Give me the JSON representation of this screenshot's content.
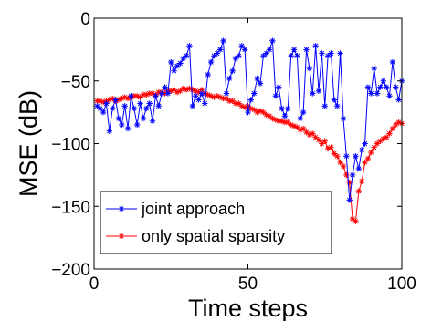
{
  "chart_data": {
    "type": "line",
    "title": "",
    "xlabel": "Time steps",
    "ylabel": "MSE (dB)",
    "xlim": [
      0,
      100
    ],
    "ylim": [
      -200,
      0
    ],
    "x_ticks": [
      0,
      50,
      100
    ],
    "x_tick_labels": [
      "0",
      "50",
      "100"
    ],
    "y_ticks": [
      0,
      -50,
      -100,
      -150,
      -200
    ],
    "y_tick_labels": [
      "0",
      "−50",
      "−100",
      "−150",
      "−200"
    ],
    "grid": false,
    "legend_position": "bottom-left",
    "series": [
      {
        "name": "joint approach",
        "color": "#0000ff",
        "marker": "asterisk",
        "x": [
          1,
          2,
          3,
          4,
          5,
          6,
          7,
          8,
          9,
          10,
          11,
          12,
          13,
          14,
          15,
          16,
          17,
          18,
          19,
          20,
          21,
          22,
          23,
          24,
          25,
          26,
          27,
          28,
          29,
          30,
          31,
          32,
          33,
          34,
          35,
          36,
          37,
          38,
          39,
          40,
          41,
          42,
          43,
          44,
          45,
          46,
          47,
          48,
          49,
          50,
          51,
          52,
          53,
          54,
          55,
          56,
          57,
          58,
          59,
          60,
          61,
          62,
          63,
          64,
          65,
          66,
          67,
          68,
          69,
          70,
          71,
          72,
          73,
          74,
          75,
          76,
          77,
          78,
          79,
          80,
          81,
          82,
          83,
          84,
          85,
          86,
          87,
          88,
          89,
          90,
          91,
          92,
          93,
          94,
          95,
          96,
          97,
          98,
          99,
          100
        ],
        "y": [
          -70,
          -72,
          -75,
          -68,
          -90,
          -72,
          -65,
          -80,
          -85,
          -70,
          -88,
          -62,
          -72,
          -85,
          -68,
          -80,
          -72,
          -68,
          -82,
          -62,
          -70,
          -60,
          -55,
          -60,
          -35,
          -42,
          -38,
          -36,
          -32,
          -30,
          -22,
          -70,
          -62,
          -65,
          -60,
          -68,
          -45,
          -35,
          -30,
          -28,
          -25,
          -18,
          -60,
          -48,
          -42,
          -32,
          -30,
          -22,
          -25,
          -75,
          -65,
          -60,
          -48,
          -52,
          -30,
          -28,
          -25,
          -18,
          -62,
          -55,
          -72,
          -78,
          -72,
          -30,
          -25,
          -30,
          -80,
          -75,
          -25,
          -40,
          -60,
          -22,
          -58,
          -28,
          -70,
          -30,
          -28,
          -65,
          -70,
          -28,
          -80,
          -110,
          -145,
          -125,
          -110,
          -120,
          -105,
          -100,
          -55,
          -60,
          -40,
          -60,
          -55,
          -50,
          -55,
          -62,
          -35,
          -55,
          -65,
          -50
        ]
      },
      {
        "name": "only spatial sparsity",
        "color": "#ff0000",
        "marker": "asterisk",
        "x": [
          1,
          2,
          3,
          4,
          5,
          6,
          7,
          8,
          9,
          10,
          11,
          12,
          13,
          14,
          15,
          16,
          17,
          18,
          19,
          20,
          21,
          22,
          23,
          24,
          25,
          26,
          27,
          28,
          29,
          30,
          31,
          32,
          33,
          34,
          35,
          36,
          37,
          38,
          39,
          40,
          41,
          42,
          43,
          44,
          45,
          46,
          47,
          48,
          49,
          50,
          51,
          52,
          53,
          54,
          55,
          56,
          57,
          58,
          59,
          60,
          61,
          62,
          63,
          64,
          65,
          66,
          67,
          68,
          69,
          70,
          71,
          72,
          73,
          74,
          75,
          76,
          77,
          78,
          79,
          80,
          81,
          82,
          83,
          84,
          85,
          86,
          87,
          88,
          89,
          90,
          91,
          92,
          93,
          94,
          95,
          96,
          97,
          98,
          99,
          100
        ],
        "y": [
          -66,
          -66,
          -67,
          -66,
          -65,
          -64,
          -66,
          -65,
          -64,
          -63,
          -64,
          -63,
          -62,
          -62,
          -63,
          -61,
          -61,
          -60,
          -60,
          -61,
          -59,
          -59,
          -60,
          -58,
          -58,
          -57,
          -59,
          -58,
          -56,
          -57,
          -56,
          -57,
          -58,
          -59,
          -57,
          -60,
          -61,
          -62,
          -63,
          -62,
          -63,
          -64,
          -64,
          -66,
          -66,
          -68,
          -68,
          -70,
          -71,
          -70,
          -72,
          -73,
          -75,
          -74,
          -75,
          -77,
          -78,
          -80,
          -81,
          -82,
          -82,
          -83,
          -83,
          -85,
          -86,
          -87,
          -89,
          -88,
          -91,
          -93,
          -92,
          -95,
          -97,
          -100,
          -98,
          -104,
          -103,
          -108,
          -110,
          -115,
          -118,
          -125,
          -131,
          -160,
          -162,
          -138,
          -130,
          -115,
          -112,
          -107,
          -103,
          -100,
          -98,
          -96,
          -95,
          -92,
          -88,
          -85,
          -83,
          -84
        ]
      }
    ]
  }
}
